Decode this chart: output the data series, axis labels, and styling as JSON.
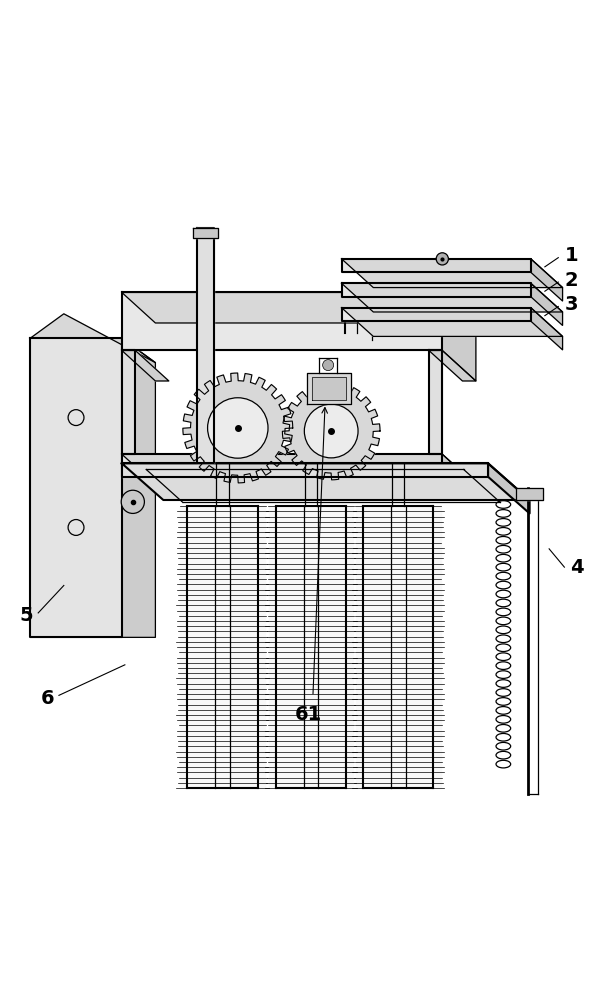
{
  "background_color": "#ffffff",
  "line_color": "#000000",
  "figsize": [
    6.16,
    10.0
  ],
  "dpi": 100,
  "label_fontsize": 14
}
